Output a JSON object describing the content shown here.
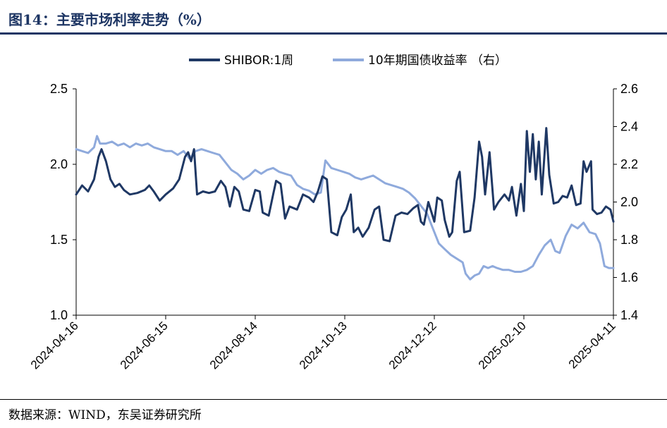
{
  "header": {
    "title": "图14：主要市场利率走势（%）"
  },
  "footer": {
    "source": "数据来源：WIND，东吴证券研究所"
  },
  "colors": {
    "title": "#1e3664",
    "shibor": "#1f3864",
    "bond": "#8faadc"
  },
  "chart_data": {
    "type": "line",
    "legend_position": "top-center",
    "grid": false,
    "x_ticks": [
      "2024-04-16",
      "2024-06-15",
      "2024-08-14",
      "2024-10-13",
      "2024-12-12",
      "2025-02-10",
      "2025-04-11"
    ],
    "x_range": [
      "2024-04-16",
      "2025-04-11"
    ],
    "y_left": {
      "range": [
        1.0,
        2.5
      ],
      "ticks": [
        "2.5",
        "2.0",
        "1.5",
        "1.0"
      ]
    },
    "y_right": {
      "range": [
        1.4,
        2.6
      ],
      "ticks": [
        "2.6",
        "2.4",
        "2.2",
        "2.0",
        "1.8",
        "1.6",
        "1.4"
      ]
    },
    "series": [
      {
        "name": "SHIBOR:1周",
        "axis": "left",
        "points": [
          [
            "2024-04-16",
            1.8
          ],
          [
            "2024-04-20",
            1.86
          ],
          [
            "2024-04-24",
            1.82
          ],
          [
            "2024-04-28",
            1.9
          ],
          [
            "2024-05-01",
            2.05
          ],
          [
            "2024-05-03",
            2.1
          ],
          [
            "2024-05-06",
            2.02
          ],
          [
            "2024-05-09",
            1.9
          ],
          [
            "2024-05-12",
            1.85
          ],
          [
            "2024-05-15",
            1.87
          ],
          [
            "2024-05-18",
            1.83
          ],
          [
            "2024-05-22",
            1.8
          ],
          [
            "2024-05-27",
            1.81
          ],
          [
            "2024-06-01",
            1.83
          ],
          [
            "2024-06-04",
            1.86
          ],
          [
            "2024-06-07",
            1.82
          ],
          [
            "2024-06-11",
            1.76
          ],
          [
            "2024-06-15",
            1.8
          ],
          [
            "2024-06-20",
            1.84
          ],
          [
            "2024-06-24",
            1.9
          ],
          [
            "2024-06-28",
            2.05
          ],
          [
            "2024-06-30",
            2.08
          ],
          [
            "2024-07-02",
            2.02
          ],
          [
            "2024-07-04",
            2.1
          ],
          [
            "2024-07-06",
            1.8
          ],
          [
            "2024-07-10",
            1.82
          ],
          [
            "2024-07-14",
            1.81
          ],
          [
            "2024-07-18",
            1.82
          ],
          [
            "2024-07-22",
            1.89
          ],
          [
            "2024-07-25",
            1.85
          ],
          [
            "2024-07-28",
            1.72
          ],
          [
            "2024-07-31",
            1.85
          ],
          [
            "2024-08-03",
            1.82
          ],
          [
            "2024-08-06",
            1.7
          ],
          [
            "2024-08-10",
            1.69
          ],
          [
            "2024-08-14",
            1.83
          ],
          [
            "2024-08-17",
            1.82
          ],
          [
            "2024-08-19",
            1.68
          ],
          [
            "2024-08-23",
            1.66
          ],
          [
            "2024-08-26",
            1.8
          ],
          [
            "2024-08-28",
            1.89
          ],
          [
            "2024-08-31",
            1.87
          ],
          [
            "2024-09-03",
            1.64
          ],
          [
            "2024-09-06",
            1.72
          ],
          [
            "2024-09-11",
            1.7
          ],
          [
            "2024-09-15",
            1.8
          ],
          [
            "2024-09-19",
            1.78
          ],
          [
            "2024-09-22",
            1.75
          ],
          [
            "2024-09-25",
            1.82
          ],
          [
            "2024-09-28",
            1.92
          ],
          [
            "2024-10-01",
            1.9
          ],
          [
            "2024-10-04",
            1.55
          ],
          [
            "2024-10-08",
            1.53
          ],
          [
            "2024-10-11",
            1.65
          ],
          [
            "2024-10-14",
            1.7
          ],
          [
            "2024-10-17",
            1.8
          ],
          [
            "2024-10-19",
            1.55
          ],
          [
            "2024-10-22",
            1.58
          ],
          [
            "2024-10-25",
            1.52
          ],
          [
            "2024-10-29",
            1.58
          ],
          [
            "2024-11-02",
            1.7
          ],
          [
            "2024-11-05",
            1.72
          ],
          [
            "2024-11-08",
            1.5
          ],
          [
            "2024-11-12",
            1.49
          ],
          [
            "2024-11-16",
            1.66
          ],
          [
            "2024-11-20",
            1.68
          ],
          [
            "2024-11-24",
            1.67
          ],
          [
            "2024-11-28",
            1.71
          ],
          [
            "2024-12-01",
            1.73
          ],
          [
            "2024-12-03",
            1.62
          ],
          [
            "2024-12-05",
            1.6
          ],
          [
            "2024-12-08",
            1.75
          ],
          [
            "2024-12-12",
            1.62
          ],
          [
            "2024-12-14",
            1.78
          ],
          [
            "2024-12-17",
            1.76
          ],
          [
            "2024-12-19",
            1.63
          ],
          [
            "2024-12-22",
            1.52
          ],
          [
            "2024-12-24",
            1.55
          ],
          [
            "2024-12-27",
            1.89
          ],
          [
            "2024-12-29",
            1.95
          ],
          [
            "2025-01-01",
            1.55
          ],
          [
            "2025-01-05",
            1.56
          ],
          [
            "2025-01-08",
            1.78
          ],
          [
            "2025-01-11",
            2.15
          ],
          [
            "2025-01-13",
            2.05
          ],
          [
            "2025-01-15",
            1.8
          ],
          [
            "2025-01-18",
            2.08
          ],
          [
            "2025-01-21",
            1.7
          ],
          [
            "2025-01-24",
            1.75
          ],
          [
            "2025-01-28",
            1.8
          ],
          [
            "2025-01-31",
            1.76
          ],
          [
            "2025-02-02",
            1.85
          ],
          [
            "2025-02-05",
            1.66
          ],
          [
            "2025-02-08",
            1.87
          ],
          [
            "2025-02-10",
            1.69
          ],
          [
            "2025-02-12",
            2.22
          ],
          [
            "2025-02-14",
            1.95
          ],
          [
            "2025-02-16",
            2.2
          ],
          [
            "2025-02-18",
            1.9
          ],
          [
            "2025-02-20",
            2.15
          ],
          [
            "2025-02-22",
            1.8
          ],
          [
            "2025-02-25",
            2.24
          ],
          [
            "2025-02-27",
            1.93
          ],
          [
            "2025-03-02",
            1.74
          ],
          [
            "2025-03-05",
            1.75
          ],
          [
            "2025-03-08",
            1.79
          ],
          [
            "2025-03-11",
            1.78
          ],
          [
            "2025-03-14",
            1.86
          ],
          [
            "2025-03-17",
            1.73
          ],
          [
            "2025-03-20",
            1.74
          ],
          [
            "2025-03-22",
            2.02
          ],
          [
            "2025-03-24",
            1.95
          ],
          [
            "2025-03-27",
            2.02
          ],
          [
            "2025-03-28",
            1.7
          ],
          [
            "2025-03-31",
            1.67
          ],
          [
            "2025-04-03",
            1.68
          ],
          [
            "2025-04-06",
            1.72
          ],
          [
            "2025-04-09",
            1.7
          ],
          [
            "2025-04-11",
            1.62
          ]
        ]
      },
      {
        "name": "10年期国债收益率 （右）",
        "axis": "right",
        "points": [
          [
            "2024-04-16",
            2.28
          ],
          [
            "2024-04-20",
            2.27
          ],
          [
            "2024-04-24",
            2.26
          ],
          [
            "2024-04-28",
            2.29
          ],
          [
            "2024-04-30",
            2.35
          ],
          [
            "2024-05-02",
            2.31
          ],
          [
            "2024-05-06",
            2.31
          ],
          [
            "2024-05-10",
            2.32
          ],
          [
            "2024-05-14",
            2.3
          ],
          [
            "2024-05-18",
            2.31
          ],
          [
            "2024-05-22",
            2.29
          ],
          [
            "2024-05-26",
            2.31
          ],
          [
            "2024-05-30",
            2.3
          ],
          [
            "2024-06-03",
            2.31
          ],
          [
            "2024-06-07",
            2.29
          ],
          [
            "2024-06-11",
            2.28
          ],
          [
            "2024-06-15",
            2.27
          ],
          [
            "2024-06-19",
            2.27
          ],
          [
            "2024-06-23",
            2.25
          ],
          [
            "2024-06-27",
            2.27
          ],
          [
            "2024-07-01",
            2.23
          ],
          [
            "2024-07-05",
            2.27
          ],
          [
            "2024-07-09",
            2.28
          ],
          [
            "2024-07-13",
            2.27
          ],
          [
            "2024-07-17",
            2.26
          ],
          [
            "2024-07-21",
            2.25
          ],
          [
            "2024-07-25",
            2.21
          ],
          [
            "2024-07-29",
            2.17
          ],
          [
            "2024-08-02",
            2.15
          ],
          [
            "2024-08-06",
            2.12
          ],
          [
            "2024-08-10",
            2.14
          ],
          [
            "2024-08-14",
            2.17
          ],
          [
            "2024-08-18",
            2.15
          ],
          [
            "2024-08-22",
            2.17
          ],
          [
            "2024-08-26",
            2.18
          ],
          [
            "2024-08-30",
            2.16
          ],
          [
            "2024-09-03",
            2.15
          ],
          [
            "2024-09-07",
            2.14
          ],
          [
            "2024-09-11",
            2.09
          ],
          [
            "2024-09-15",
            2.07
          ],
          [
            "2024-09-19",
            2.06
          ],
          [
            "2024-09-23",
            2.04
          ],
          [
            "2024-09-27",
            2.05
          ],
          [
            "2024-09-30",
            2.22
          ],
          [
            "2024-10-04",
            2.18
          ],
          [
            "2024-10-08",
            2.17
          ],
          [
            "2024-10-12",
            2.16
          ],
          [
            "2024-10-16",
            2.15
          ],
          [
            "2024-10-20",
            2.13
          ],
          [
            "2024-10-24",
            2.12
          ],
          [
            "2024-10-28",
            2.13
          ],
          [
            "2024-11-01",
            2.14
          ],
          [
            "2024-11-05",
            2.12
          ],
          [
            "2024-11-09",
            2.1
          ],
          [
            "2024-11-13",
            2.09
          ],
          [
            "2024-11-17",
            2.08
          ],
          [
            "2024-11-21",
            2.07
          ],
          [
            "2024-11-25",
            2.05
          ],
          [
            "2024-11-29",
            2.02
          ],
          [
            "2024-12-03",
            1.98
          ],
          [
            "2024-12-07",
            1.94
          ],
          [
            "2024-12-11",
            1.86
          ],
          [
            "2024-12-15",
            1.78
          ],
          [
            "2024-12-19",
            1.75
          ],
          [
            "2024-12-23",
            1.72
          ],
          [
            "2024-12-27",
            1.7
          ],
          [
            "2024-12-31",
            1.68
          ],
          [
            "2025-01-02",
            1.62
          ],
          [
            "2025-01-05",
            1.59
          ],
          [
            "2025-01-08",
            1.61
          ],
          [
            "2025-01-11",
            1.62
          ],
          [
            "2025-01-14",
            1.66
          ],
          [
            "2025-01-17",
            1.65
          ],
          [
            "2025-01-20",
            1.66
          ],
          [
            "2025-01-23",
            1.65
          ],
          [
            "2025-01-27",
            1.64
          ],
          [
            "2025-01-31",
            1.64
          ],
          [
            "2025-02-04",
            1.63
          ],
          [
            "2025-02-08",
            1.63
          ],
          [
            "2025-02-12",
            1.64
          ],
          [
            "2025-02-16",
            1.66
          ],
          [
            "2025-02-20",
            1.72
          ],
          [
            "2025-02-24",
            1.77
          ],
          [
            "2025-02-28",
            1.8
          ],
          [
            "2025-03-03",
            1.74
          ],
          [
            "2025-03-06",
            1.73
          ],
          [
            "2025-03-10",
            1.82
          ],
          [
            "2025-03-14",
            1.88
          ],
          [
            "2025-03-18",
            1.86
          ],
          [
            "2025-03-22",
            1.89
          ],
          [
            "2025-03-26",
            1.84
          ],
          [
            "2025-03-30",
            1.83
          ],
          [
            "2025-04-02",
            1.78
          ],
          [
            "2025-04-05",
            1.66
          ],
          [
            "2025-04-08",
            1.65
          ],
          [
            "2025-04-11",
            1.65
          ]
        ]
      }
    ]
  }
}
